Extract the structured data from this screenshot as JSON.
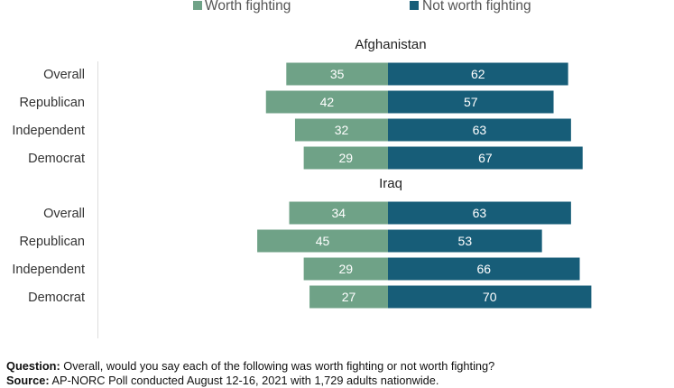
{
  "chart_data": {
    "type": "bar",
    "orientation": "horizontal-diverging",
    "legend": {
      "placement": "top",
      "entries": [
        {
          "name": "Worth fighting",
          "color": "#6fa287"
        },
        {
          "name": "Not worth fighting",
          "color": "#175d78"
        }
      ]
    },
    "series": [
      {
        "name": "Worth fighting",
        "color": "#6fa287"
      },
      {
        "name": "Not worth fighting",
        "color": "#175d78"
      }
    ],
    "groups": [
      {
        "title": "Afghanistan",
        "categories": [
          "Overall",
          "Republican",
          "Independent",
          "Democrat"
        ],
        "worth": [
          35,
          42,
          32,
          29
        ],
        "not_worth": [
          62,
          57,
          63,
          67
        ]
      },
      {
        "title": "Iraq",
        "categories": [
          "Overall",
          "Republican",
          "Independent",
          "Democrat"
        ],
        "worth": [
          34,
          45,
          29,
          27
        ],
        "not_worth": [
          63,
          53,
          66,
          70
        ]
      }
    ],
    "xlim": [
      -45,
      70
    ],
    "grid": false
  },
  "footer": {
    "question_label": "Question:",
    "question_text": " Overall, would you say each of the following was worth fighting or not worth fighting?",
    "source_label": "Source:",
    "source_text": " AP-NORC Poll conducted August 12-16, 2021 with 1,729 adults nationwide."
  }
}
